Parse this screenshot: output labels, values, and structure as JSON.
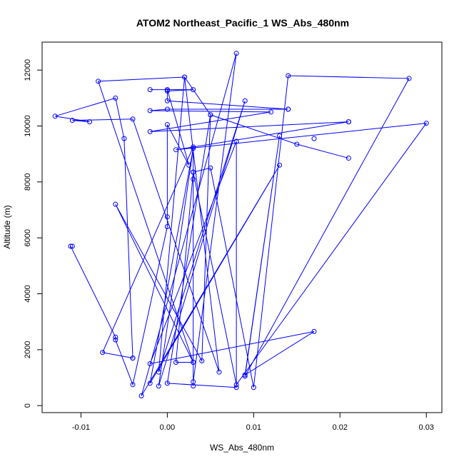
{
  "chart_data": {
    "type": "line",
    "title": "ATOM2 Northeast_Pacific_1 WS_Abs_480nm",
    "xlabel": "WS_Abs_480nm",
    "ylabel": "Altitude (m)",
    "xlim": [
      -0.0145,
      0.0318
    ],
    "ylim": [
      -250,
      13000
    ],
    "xticks": [
      -0.01,
      0.0,
      0.01,
      0.02,
      0.03
    ],
    "xtick_labels": [
      "-0.01",
      "0.00",
      "0.01",
      "0.02",
      "0.03"
    ],
    "yticks": [
      0,
      2000,
      4000,
      6000,
      8000,
      10000,
      12000
    ],
    "ytick_labels": [
      "0",
      "2000",
      "4000",
      "6000",
      "8000",
      "10000",
      "12000"
    ],
    "line_color": "#0000ff",
    "marker": "open-circle",
    "grid": false,
    "legend": false,
    "series": [
      {
        "points": [
          {
            "x": -0.0112,
            "y": 5700
          },
          {
            "x": -0.006,
            "y": 2450
          },
          {
            "x": -0.006,
            "y": 2350
          },
          {
            "x": -0.004,
            "y": 750
          },
          {
            "x": 0.0,
            "y": 6400
          },
          {
            "x": 0.0,
            "y": 6750
          },
          {
            "x": 0.0,
            "y": 10050
          },
          {
            "x": 0.0025,
            "y": 8600
          },
          {
            "x": 0.0,
            "y": 11300
          },
          {
            "x": -0.002,
            "y": 11300
          },
          {
            "x": 0.0,
            "y": 11300
          },
          {
            "x": 0.003,
            "y": 11300
          },
          {
            "x": 0.0,
            "y": 11250
          },
          {
            "x": 0.0,
            "y": 10900
          },
          {
            "x": 0.014,
            "y": 10600
          },
          {
            "x": 0.0,
            "y": 10600
          },
          {
            "x": -0.002,
            "y": 10550
          },
          {
            "x": 0.012,
            "y": 10500
          },
          {
            "x": -0.002,
            "y": 9800
          },
          {
            "x": 0.021,
            "y": 10150
          },
          {
            "x": 0.001,
            "y": 9150
          },
          {
            "x": 0.03,
            "y": 10100
          },
          {
            "x": 0.008,
            "y": 750
          },
          {
            "x": 0.003,
            "y": 8350
          },
          {
            "x": 0.003,
            "y": 700
          },
          {
            "x": 0.003,
            "y": 8100
          },
          {
            "x": 0.003,
            "y": 850
          },
          {
            "x": 0.008,
            "y": 12600
          },
          {
            "x": -0.003,
            "y": 350
          },
          {
            "x": 0.013,
            "y": 8600
          },
          {
            "x": -0.002,
            "y": 800
          },
          {
            "x": 0.003,
            "y": 9200
          },
          {
            "x": -0.001,
            "y": 700
          },
          {
            "x": 0.009,
            "y": 10900
          },
          {
            "x": -0.001,
            "y": 1200
          },
          {
            "x": 0.002,
            "y": 11750
          },
          {
            "x": 0.006,
            "y": 1200
          },
          {
            "x": -0.004,
            "y": 10250
          },
          {
            "x": -0.011,
            "y": 10200
          },
          {
            "x": -0.009,
            "y": 10150
          },
          {
            "x": -0.013,
            "y": 10350
          },
          {
            "x": -0.006,
            "y": 11000
          },
          {
            "x": -0.005,
            "y": 9550
          },
          {
            "x": -0.004,
            "y": 1700
          },
          {
            "x": -0.004,
            "y": 1700
          },
          {
            "x": -0.0075,
            "y": 1900
          },
          {
            "x": 0.003,
            "y": 9250
          },
          {
            "x": 0.003,
            "y": 1550
          },
          {
            "x": -0.006,
            "y": 7200
          },
          {
            "x": 0.004,
            "y": 1600
          },
          {
            "x": 0.005,
            "y": 10400
          },
          {
            "x": 0.002,
            "y": 11750
          },
          {
            "x": -0.008,
            "y": 11600
          },
          {
            "x": 0.003,
            "y": 1550
          },
          {
            "x": 0.001,
            "y": 1550
          },
          {
            "x": 0.003,
            "y": 8350
          },
          {
            "x": 0.005,
            "y": 8500
          },
          {
            "x": 0.01,
            "y": 650
          },
          {
            "x": 0.014,
            "y": 11800
          },
          {
            "x": 0.028,
            "y": 11700
          },
          {
            "x": 0.009,
            "y": 1050
          },
          {
            "x": 0.013,
            "y": 9650
          },
          {
            "x": 0.009,
            "y": 1100
          },
          {
            "x": 0.017,
            "y": 2650
          },
          {
            "x": -0.002,
            "y": 1500
          },
          {
            "x": 0.008,
            "y": 9450
          },
          {
            "x": 0.008,
            "y": 650
          },
          {
            "x": 0.0,
            "y": 800
          },
          {
            "x": 0.005,
            "y": 10400
          },
          {
            "x": 0.015,
            "y": 9350
          },
          {
            "x": 0.021,
            "y": 8850
          }
        ],
        "extra_points": [
          {
            "x": 0.017,
            "y": 9550
          },
          {
            "x": 0.014,
            "y": 10600
          },
          {
            "x": 0.021,
            "y": 10150
          },
          {
            "x": -0.011,
            "y": 5700
          }
        ]
      }
    ]
  }
}
